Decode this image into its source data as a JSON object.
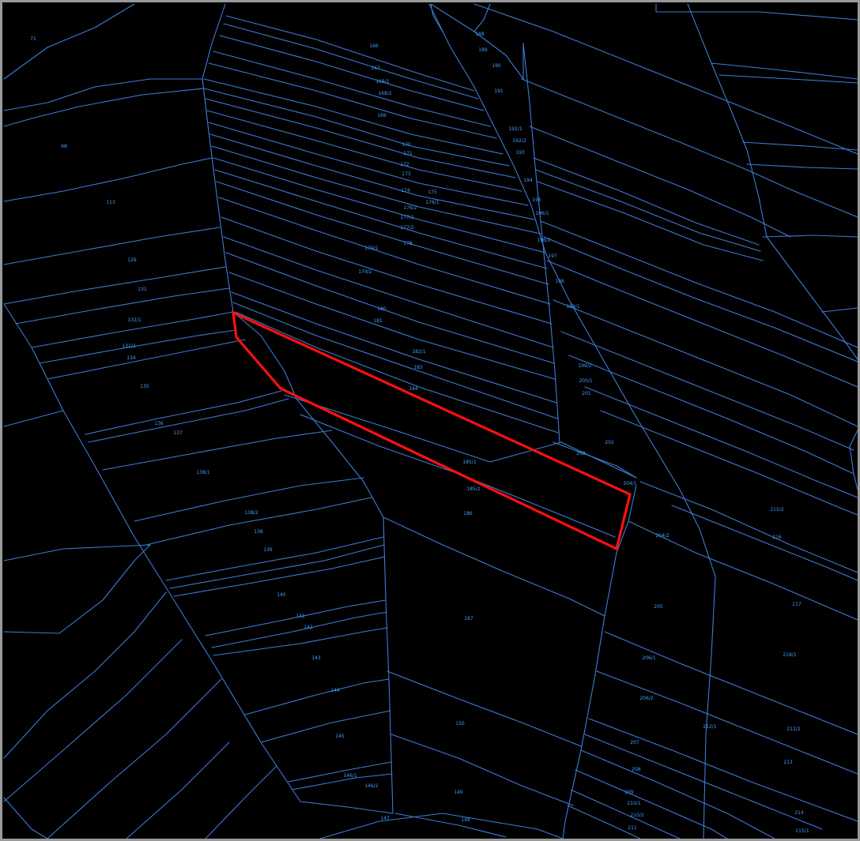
{
  "map": {
    "background": "#000000",
    "line_color": "#3d7bd6",
    "label_color": "#3f9fff",
    "highlight_color": "#ff1010",
    "selected_parcel": "185/1",
    "parcel_labels": [
      "71",
      "98",
      "113",
      "129",
      "131",
      "132/1",
      "132/2",
      "134",
      "135",
      "136",
      "137",
      "138/1",
      "138/2",
      "138",
      "139",
      "140",
      "141",
      "142",
      "143",
      "144",
      "145",
      "146/1",
      "146/2",
      "147",
      "148",
      "149",
      "150",
      "166",
      "167",
      "168/1",
      "168/2",
      "169",
      "170",
      "171",
      "172",
      "173",
      "174",
      "175",
      "176/1",
      "176/2",
      "177/1",
      "177/2",
      "178",
      "179/1",
      "179/2",
      "180",
      "181",
      "182/1",
      "183",
      "184",
      "185/1",
      "185/2",
      "186",
      "187",
      "188",
      "189",
      "190",
      "191",
      "192/1",
      "192/2",
      "193",
      "194",
      "195",
      "196/1",
      "196/2",
      "197",
      "198",
      "199/1",
      "199/2",
      "200/1",
      "201",
      "202",
      "203",
      "204/1",
      "204/2",
      "205",
      "206/1",
      "206/2",
      "207",
      "208",
      "209",
      "210/1",
      "210/2",
      "211",
      "212/1",
      "212/2",
      "213",
      "214",
      "215/1",
      "215/2",
      "216",
      "217",
      "218/1",
      "218/2"
    ]
  }
}
